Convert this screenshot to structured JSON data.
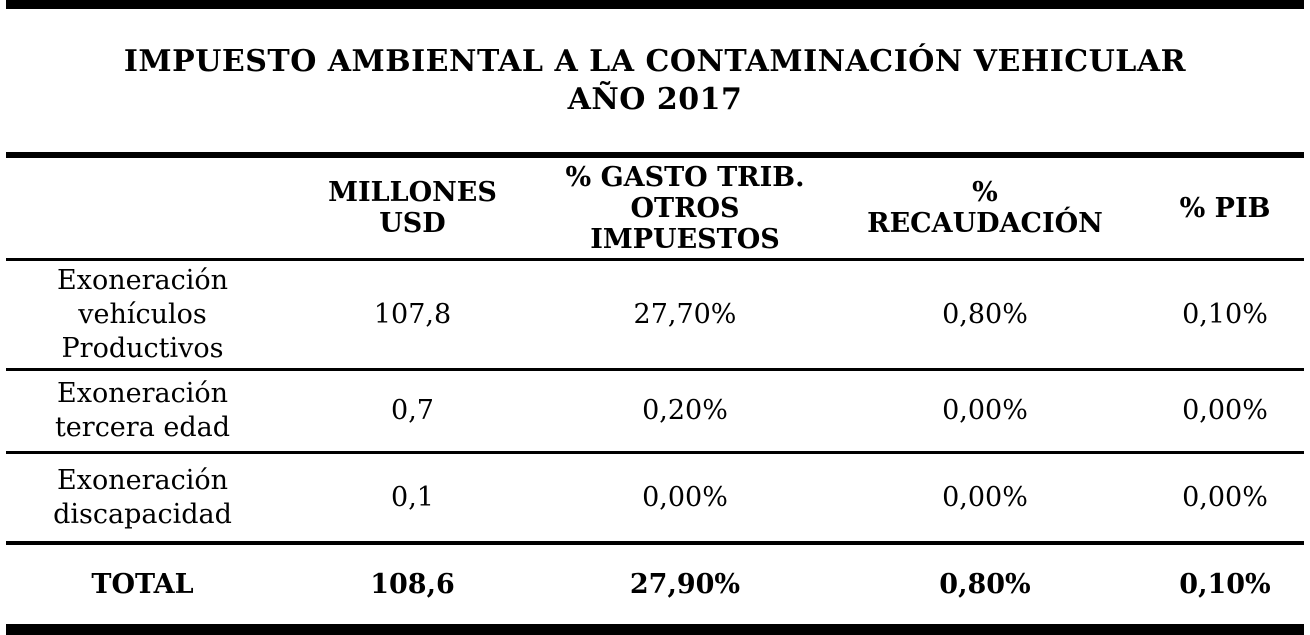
{
  "title": {
    "line1": "IMPUESTO AMBIENTAL A LA CONTAMINACIÓN VEHICULAR",
    "line2": "AÑO 2017"
  },
  "table": {
    "headers": [
      "",
      "MILLONES\nUSD",
      "% GASTO TRIB.\nOTROS\nIMPUESTOS",
      "%\nRECAUDACIÓN",
      "% PIB"
    ],
    "rows": [
      {
        "label": "Exoneración\nvehículos\nProductivos",
        "millones_usd": "107,8",
        "pct_gasto_trib_otros_impuestos": "27,70%",
        "pct_recaudacion": "0,80%",
        "pct_pib": "0,10%"
      },
      {
        "label": "Exoneración\ntercera edad",
        "millones_usd": "0,7",
        "pct_gasto_trib_otros_impuestos": "0,20%",
        "pct_recaudacion": "0,00%",
        "pct_pib": "0,00%"
      },
      {
        "label": "Exoneración\ndiscapacidad",
        "millones_usd": "0,1",
        "pct_gasto_trib_otros_impuestos": "0,00%",
        "pct_recaudacion": "0,00%",
        "pct_pib": "0,00%"
      }
    ],
    "total": {
      "label": "TOTAL",
      "millones_usd": "108,6",
      "pct_gasto_trib_otros_impuestos": "27,90%",
      "pct_recaudacion": "0,80%",
      "pct_pib": "0,10%"
    }
  },
  "colors": {
    "text": "#000000",
    "background": "#ffffff"
  }
}
